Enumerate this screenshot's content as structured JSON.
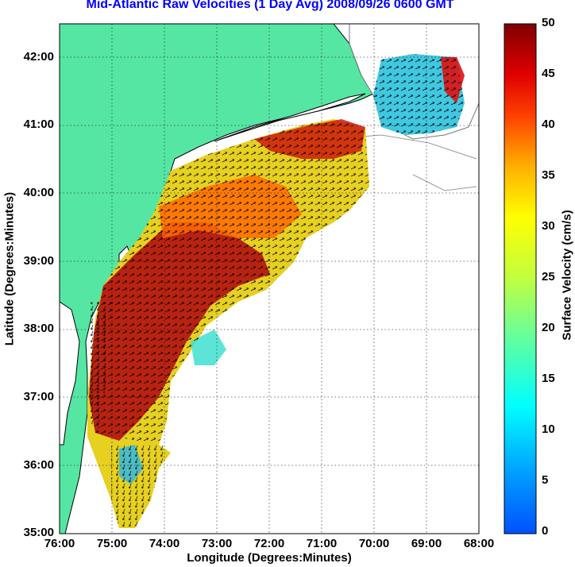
{
  "title": "Mid-Atlantic Raw Velocities (1 Day Avg) 2008/09/26 0600 GMT",
  "axes": {
    "xlabel": "Longitude (Degrees:Minutes)",
    "ylabel": "Latitude (Degrees:Minutes)",
    "x_ticks": [
      "76:00",
      "75:00",
      "74:00",
      "73:00",
      "72:00",
      "71:00",
      "70:00",
      "69:00",
      "68:00"
    ],
    "y_ticks": [
      "42:00",
      "41:00",
      "40:00",
      "39:00",
      "38:00",
      "37:00",
      "36:00",
      "35:00"
    ],
    "grid": "dotted"
  },
  "colorbar": {
    "label": "Surface Velocity (cm/s)",
    "ticks": [
      "50",
      "45",
      "40",
      "35",
      "30",
      "25",
      "20",
      "15",
      "10",
      "5",
      "0"
    ],
    "range": [
      0,
      50
    ],
    "colormap": "jet"
  },
  "colors": {
    "land": "#55e6a3",
    "title": "#0000ff",
    "coast": "#000000",
    "bathymetry": "#9a9a9a"
  }
}
